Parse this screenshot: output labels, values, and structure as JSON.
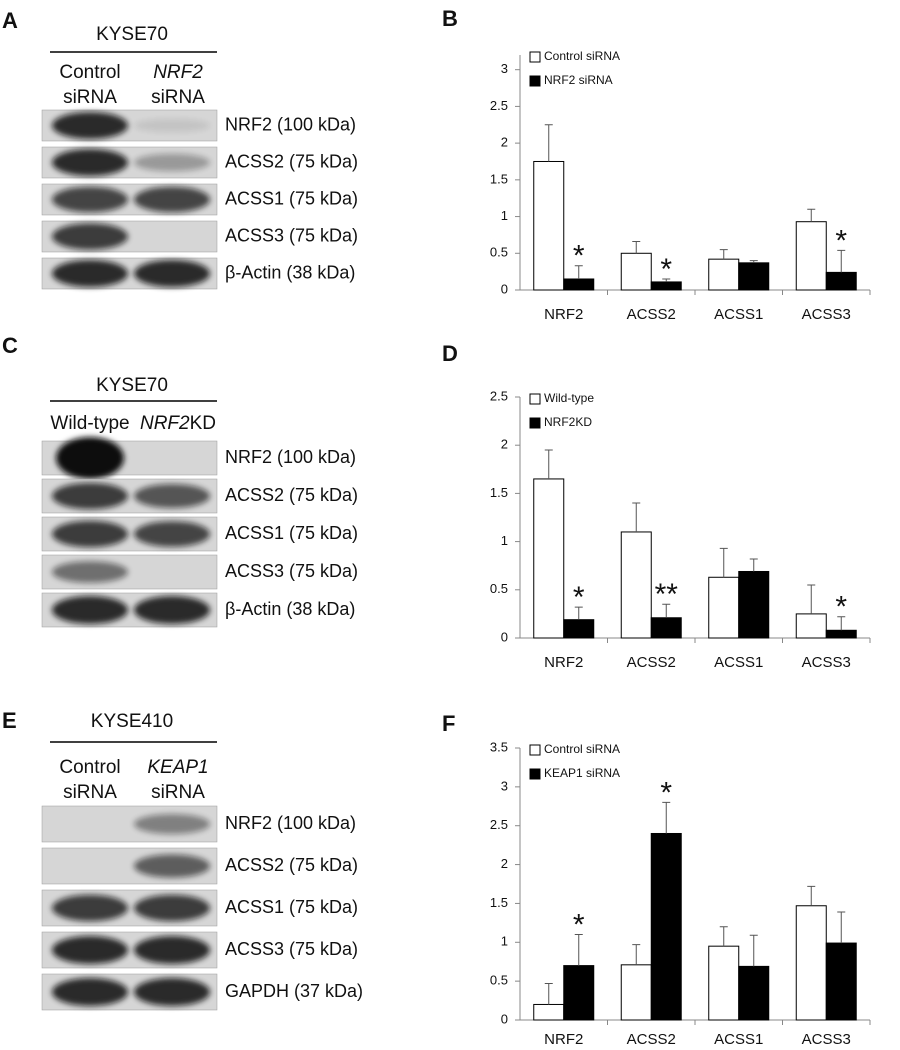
{
  "blots": [
    {
      "panel": "A",
      "cell_line": "KYSE70",
      "lanes": [
        [
          [
            {
              "text": "Control"
            }
          ],
          [
            {
              "text": "siRNA"
            }
          ]
        ],
        [
          [
            {
              "text": "NRF2",
              "italic": true
            }
          ],
          [
            {
              "text": "siRNA"
            }
          ]
        ]
      ],
      "bands": [
        "NRF2 (100 kDa)",
        "ACSS2 (75 kDa)",
        "ACSS1 (75 kDa)",
        "ACSS3 (75 kDa)",
        "β-Actin (38 kDa)"
      ]
    },
    {
      "panel": "C",
      "cell_line": "KYSE70",
      "lanes": [
        [
          [
            {
              "text": "Wild-type"
            }
          ]
        ],
        [
          [
            {
              "text": "NRF2",
              "italic": true
            },
            {
              "text": "KD"
            }
          ]
        ]
      ],
      "bands": [
        "NRF2 (100 kDa)",
        "ACSS2 (75 kDa)",
        "ACSS1 (75 kDa)",
        "ACSS3 (75 kDa)",
        "β-Actin (38 kDa)"
      ]
    },
    {
      "panel": "E",
      "cell_line": "KYSE410",
      "lanes": [
        [
          [
            {
              "text": "Control"
            }
          ],
          [
            {
              "text": "siRNA"
            }
          ]
        ],
        [
          [
            {
              "text": "KEAP1",
              "italic": true
            }
          ],
          [
            {
              "text": "siRNA"
            }
          ]
        ]
      ],
      "bands": [
        "NRF2 (100 kDa)",
        "ACSS2 (75 kDa)",
        "ACSS1 (75 kDa)",
        "ACSS3 (75 kDa)",
        "GAPDH (37 kDa)"
      ]
    }
  ],
  "chart_data": [
    {
      "type": "bar",
      "panel": "B",
      "categories": [
        "NRF2",
        "ACSS2",
        "ACSS1",
        "ACSS3"
      ],
      "series": [
        {
          "name": "Control siRNA",
          "color": "#ffffff",
          "values": [
            1.75,
            0.5,
            0.42,
            0.93
          ],
          "errors": [
            0.5,
            0.16,
            0.13,
            0.17
          ],
          "significance": [
            null,
            null,
            null,
            null
          ]
        },
        {
          "name": "NRF2 siRNA",
          "color": "#000000",
          "values": [
            0.15,
            0.11,
            0.37,
            0.24
          ],
          "errors": [
            0.18,
            0.04,
            0.03,
            0.3
          ],
          "significance": [
            "*",
            "*",
            null,
            "*"
          ]
        }
      ],
      "ylim": [
        0,
        3.2
      ],
      "yticks": [
        0,
        0.5,
        1,
        1.5,
        2,
        2.5,
        3
      ],
      "legend": "upper-left"
    },
    {
      "type": "bar",
      "panel": "D",
      "categories": [
        "NRF2",
        "ACSS2",
        "ACSS1",
        "ACSS3"
      ],
      "series": [
        {
          "name": "Wild-type",
          "color": "#ffffff",
          "values": [
            1.65,
            1.1,
            0.63,
            0.25
          ],
          "errors": [
            0.3,
            0.3,
            0.3,
            0.3
          ],
          "significance": [
            null,
            null,
            null,
            null
          ]
        },
        {
          "name": "NRF2KD",
          "color": "#000000",
          "values": [
            0.19,
            0.21,
            0.69,
            0.08
          ],
          "errors": [
            0.13,
            0.14,
            0.13,
            0.14
          ],
          "significance": [
            "*",
            "**",
            null,
            "*"
          ]
        }
      ],
      "ylim": [
        0,
        2.5
      ],
      "yticks": [
        0,
        0.5,
        1,
        1.5,
        2,
        2.5
      ],
      "legend": "upper-left"
    },
    {
      "type": "bar",
      "panel": "F",
      "categories": [
        "NRF2",
        "ACSS2",
        "ACSS1",
        "ACSS3"
      ],
      "series": [
        {
          "name": "Control siRNA",
          "color": "#ffffff",
          "values": [
            0.2,
            0.71,
            0.95,
            1.47
          ],
          "errors": [
            0.27,
            0.26,
            0.25,
            0.25
          ],
          "significance": [
            null,
            null,
            null,
            null
          ]
        },
        {
          "name": "KEAP1 siRNA",
          "color": "#000000",
          "values": [
            0.7,
            2.4,
            0.69,
            0.99
          ],
          "errors": [
            0.4,
            0.4,
            0.4,
            0.4
          ],
          "significance": [
            "*",
            "*",
            null,
            null
          ]
        }
      ],
      "ylim": [
        0,
        3.5
      ],
      "yticks": [
        0,
        0.5,
        1,
        1.5,
        2,
        2.5,
        3,
        3.5
      ],
      "legend": "upper-left"
    }
  ]
}
